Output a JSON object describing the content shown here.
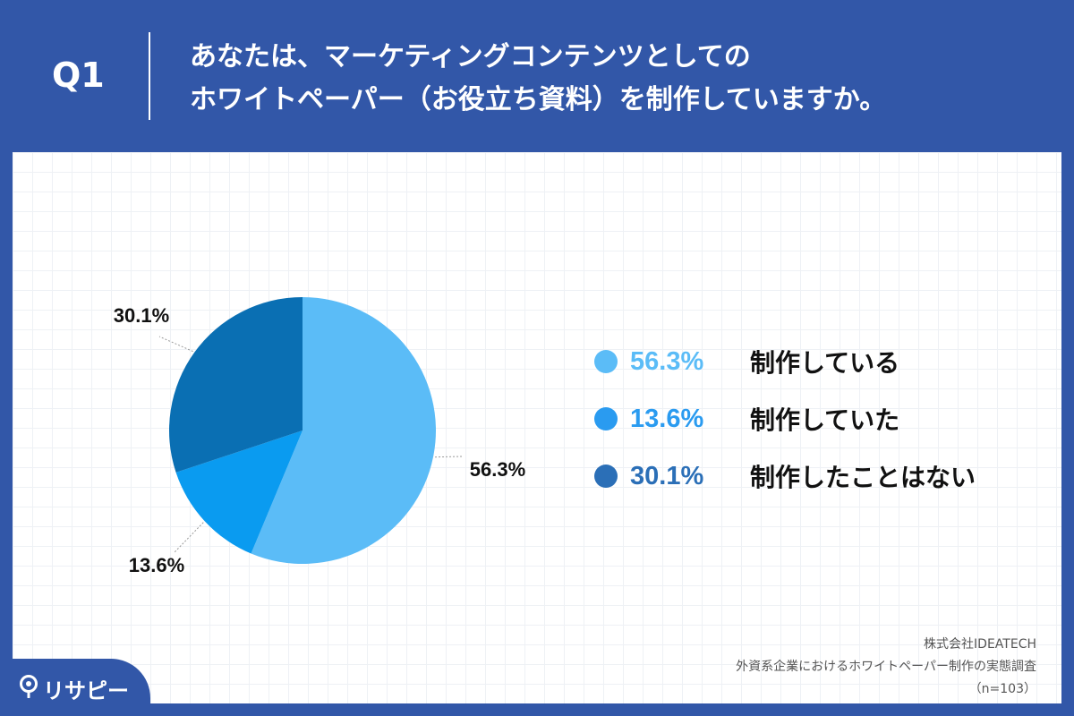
{
  "header": {
    "q_label": "Q1",
    "question_line1": "あなたは、マーケティングコンテンツとしての",
    "question_line2": "ホワイトペーパー（お役立ち資料）を制作していますか。"
  },
  "chart_data": {
    "type": "pie",
    "categories": [
      "制作している",
      "制作していた",
      "制作したことはない"
    ],
    "values": [
      56.3,
      13.6,
      30.1
    ],
    "data_labels": [
      "56.3%",
      "13.6%",
      "30.1%"
    ],
    "colors": [
      "#5bbcf7",
      "#0a9bf0",
      "#0a6fb3"
    ],
    "start_angle": "12 o'clock",
    "direction": "clockwise",
    "legend_position": "right"
  },
  "legend": {
    "items": [
      {
        "pct": "56.3%",
        "label": "制作している",
        "color": "#5bbcf7"
      },
      {
        "pct": "13.6%",
        "label": "制作していた",
        "color": "#2a9bf0"
      },
      {
        "pct": "30.1%",
        "label": "制作したことはない",
        "color": "#2b6fb7"
      }
    ]
  },
  "source": {
    "company": "株式会社IDEATECH",
    "survey": "外資系企業におけるホワイトペーパー制作の実態調査",
    "sample": "（n=103）"
  },
  "brand": {
    "name": "リサピー",
    "icon": "map-pin-icon"
  },
  "colors": {
    "background": "#3257a8",
    "panel": "#ffffff",
    "text": "#111111"
  }
}
